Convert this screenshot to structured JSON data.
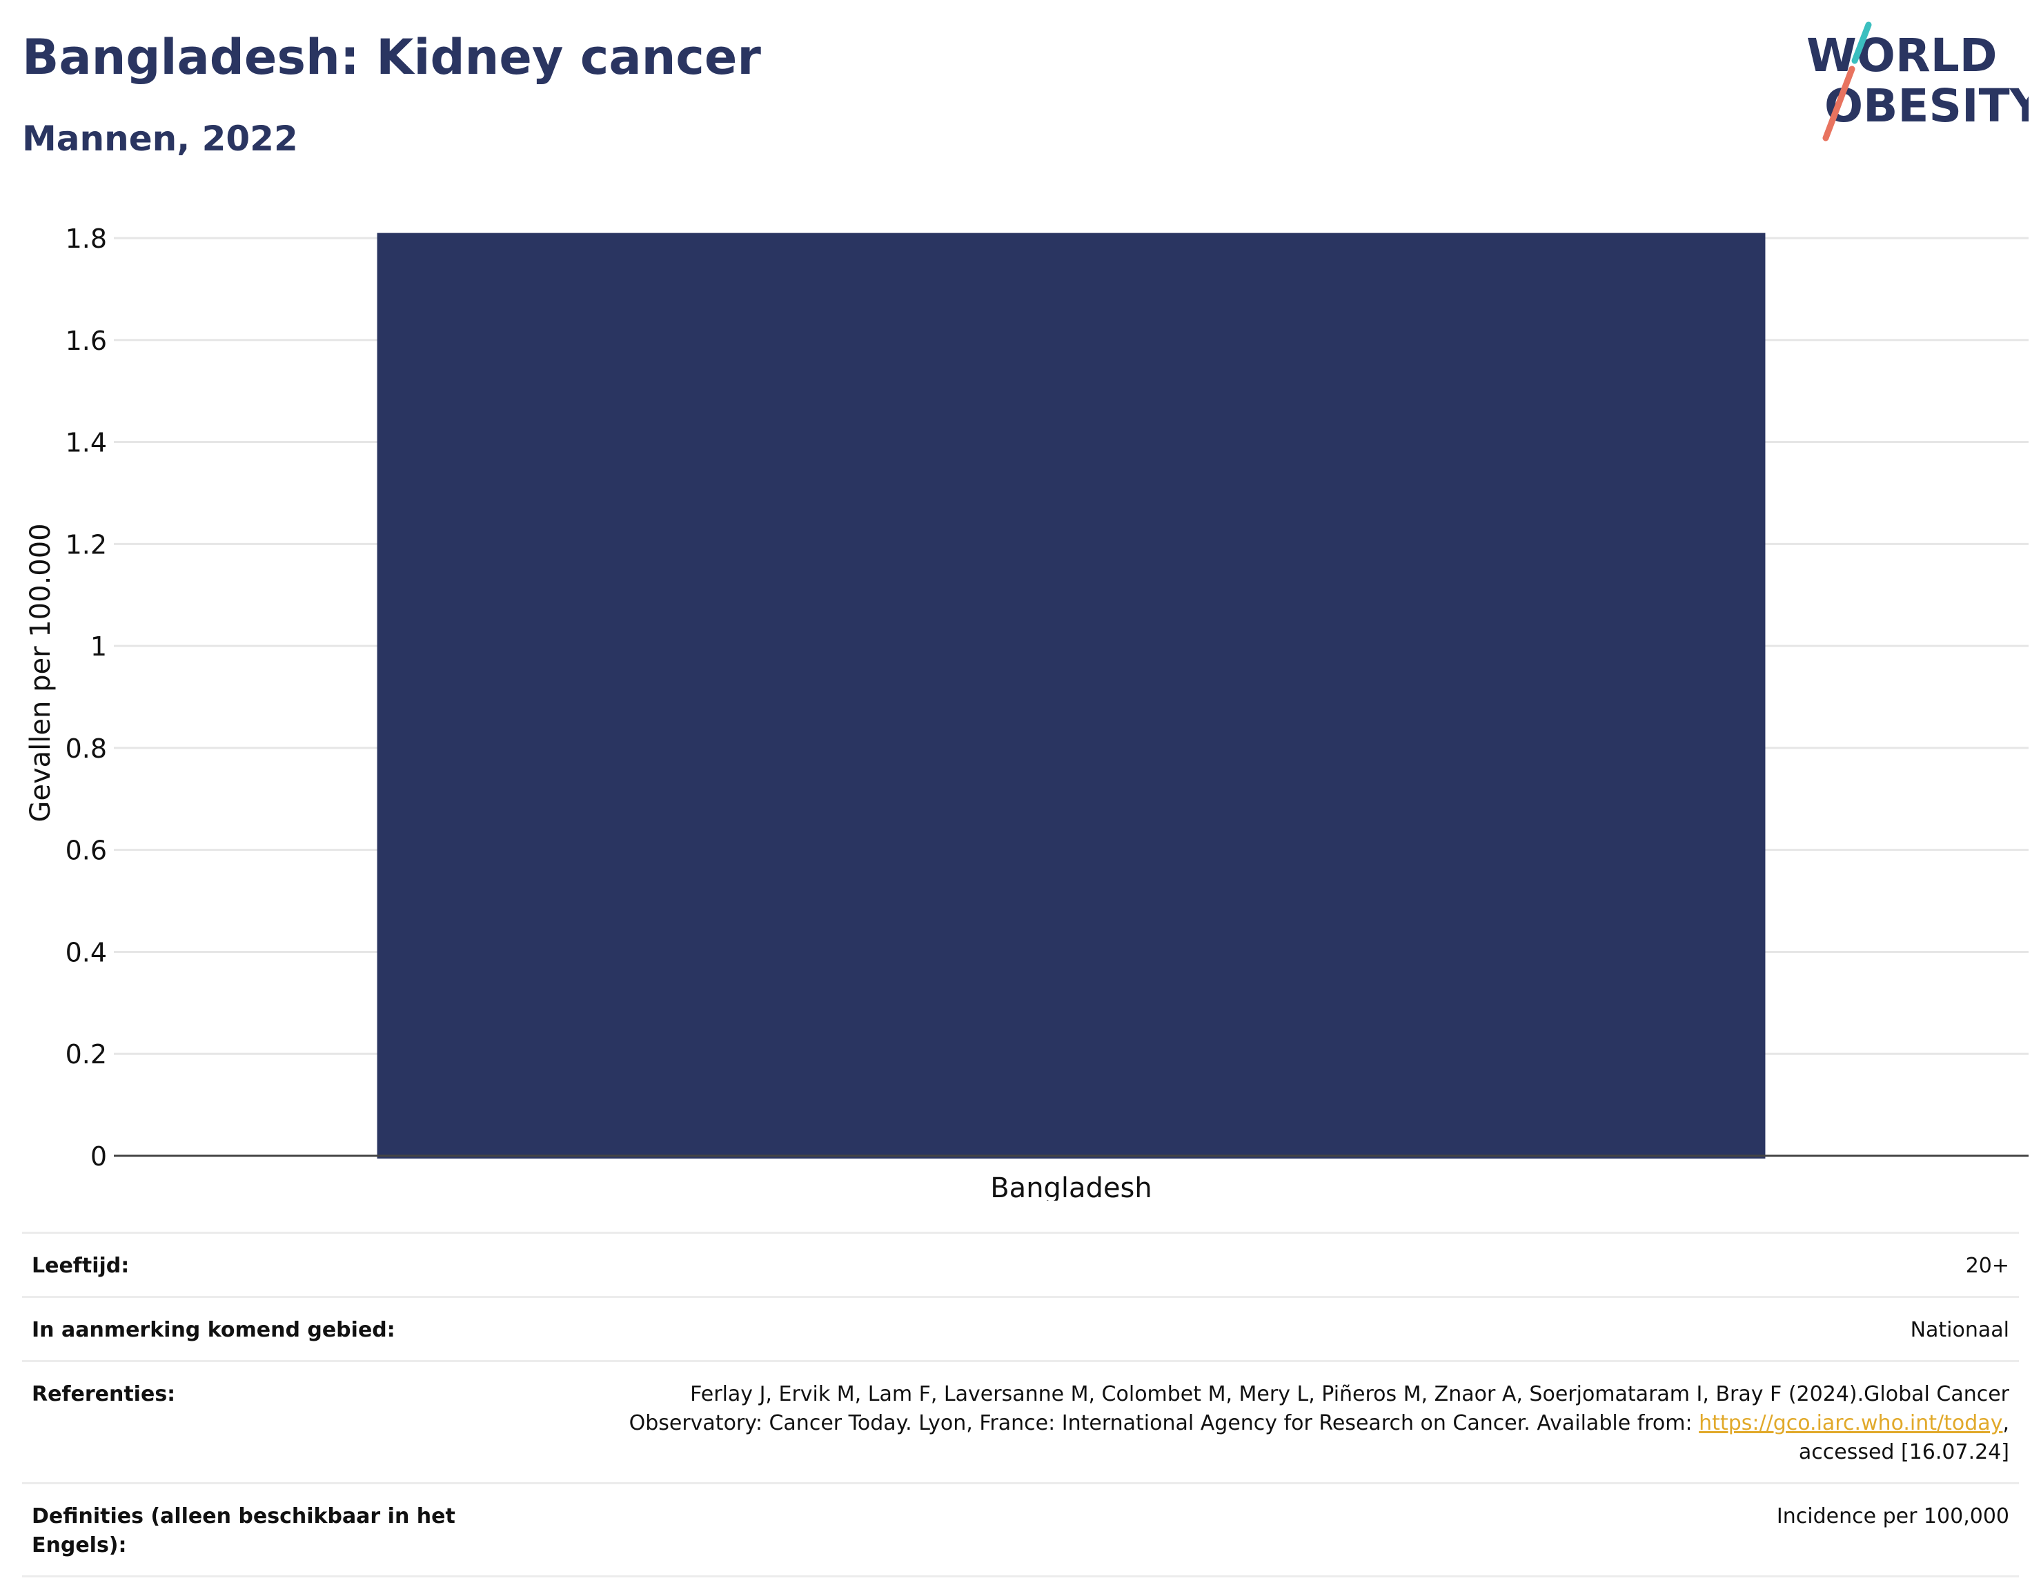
{
  "header": {
    "title": "Bangladesh: Kidney cancer",
    "subtitle": "Mannen, 2022"
  },
  "logo": {
    "line1": "WORLD",
    "line2": "OBESITY",
    "accent_teal": "#3bbfbf",
    "accent_coral": "#e8735f"
  },
  "colors": {
    "bar": "#2a3561",
    "text": "#2a3561",
    "grid": "#e6e6e6",
    "link": "#e1a92a"
  },
  "chart_data": {
    "type": "bar",
    "categories": [
      "Bangladesh"
    ],
    "values": [
      1.81
    ],
    "ylabel": "Gevallen per 100.000",
    "xlabel": "",
    "ylim": [
      0,
      1.8
    ],
    "yticks": [
      0,
      0.2,
      0.4,
      0.6,
      0.8,
      1,
      1.2,
      1.4,
      1.6,
      1.8
    ],
    "ytick_labels": [
      "0",
      "0.2",
      "0.4",
      "0.6",
      "0.8",
      "1",
      "1.2",
      "1.4",
      "1.6",
      "1.8"
    ],
    "grid": true
  },
  "meta": {
    "rows": [
      {
        "label": "Leeftijd:",
        "value": "20+"
      },
      {
        "label": "In aanmerking komend gebied:",
        "value": "Nationaal"
      },
      {
        "label": "Referenties:",
        "value_line1": "Ferlay J, Ervik M, Lam F, Laversanne M, Colombet M, Mery L, Piñeros M, Znaor A, Soerjomataram I, Bray F (2024).Global Cancer",
        "value_line2_prefix": "Observatory: Cancer Today. Lyon, France: International Agency for Research on Cancer. Available from: ",
        "link": "https://gco.iarc.who.int/today",
        "value_line2_suffix": ",",
        "value_line3": "accessed [16.07.24]"
      },
      {
        "label": "Definities (alleen beschikbaar in het Engels):",
        "value": "Incidence per 100,000"
      }
    ]
  }
}
